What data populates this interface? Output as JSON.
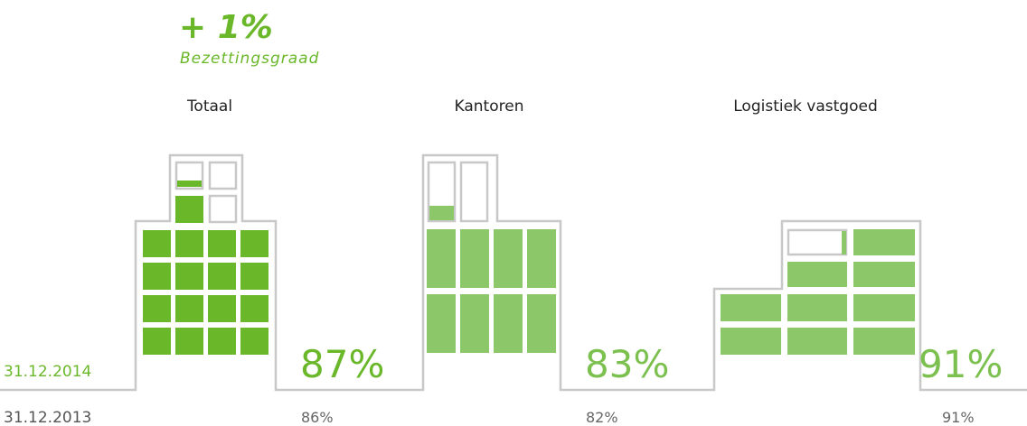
{
  "headline": {
    "change": "+ 1%",
    "label": "Bezettingsgraad"
  },
  "dates": {
    "current": "31.12.2014",
    "previous": "31.12.2013"
  },
  "groups": [
    {
      "name": "Totaal",
      "current": "87%",
      "previous": "86%"
    },
    {
      "name": "Kantoren",
      "current": "83%",
      "previous": "82%"
    },
    {
      "name": "Logistiek vastgoed",
      "current": "91%",
      "previous": "91%"
    }
  ]
}
